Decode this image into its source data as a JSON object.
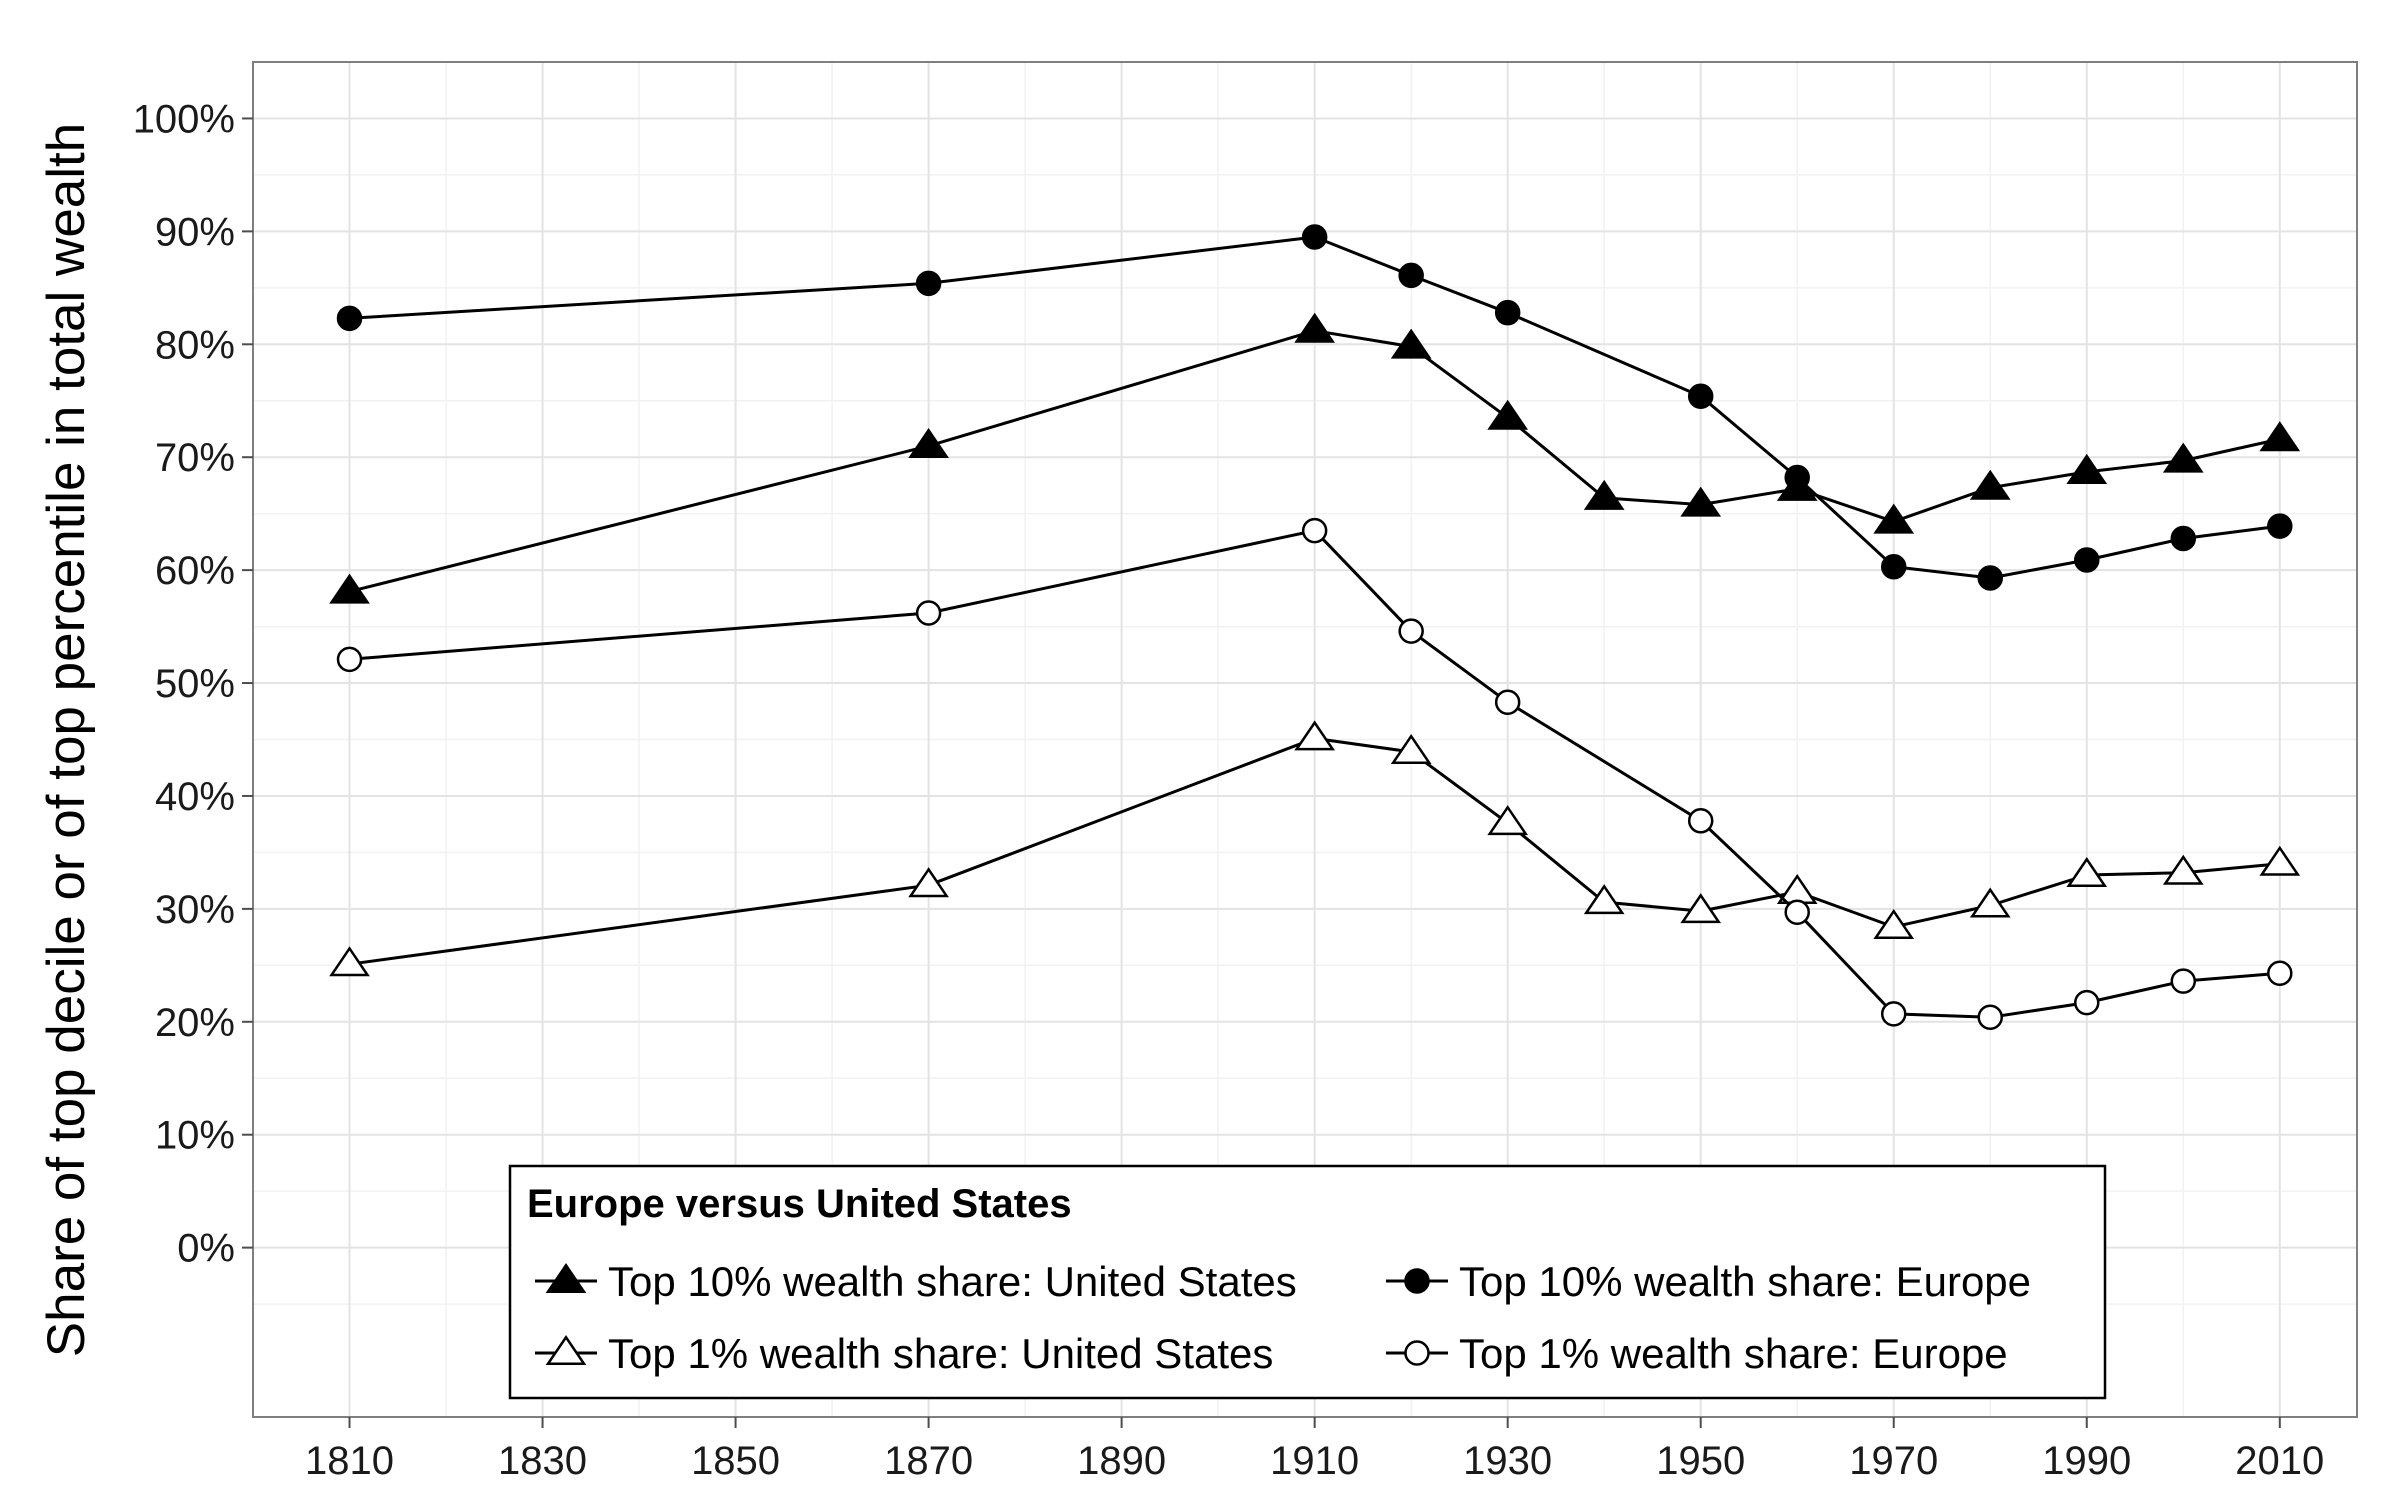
{
  "chart_data": {
    "type": "line",
    "title": "",
    "xlabel": "",
    "ylabel": "Share of top decile or of top percentile in total wealth",
    "xlim": [
      1800,
      2018
    ],
    "ylim": [
      -15,
      105
    ],
    "x_ticks": [
      1810,
      1830,
      1850,
      1870,
      1890,
      1910,
      1930,
      1950,
      1970,
      1990,
      2010
    ],
    "y_ticks": [
      0,
      10,
      20,
      30,
      40,
      50,
      60,
      70,
      80,
      90,
      100
    ],
    "y_tick_labels": [
      "0%",
      "10%",
      "20%",
      "30%",
      "40%",
      "50%",
      "60%",
      "70%",
      "80%",
      "90%",
      "100%"
    ],
    "grid": true,
    "legend": {
      "title": "Europe versus United States",
      "position": "bottom-center",
      "columns": 2
    },
    "series": [
      {
        "name": "Top 10% wealth share: United States",
        "marker": "triangle-filled",
        "x": [
          1810,
          1870,
          1910,
          1920,
          1930,
          1940,
          1950,
          1960,
          1970,
          1980,
          1990,
          2000,
          2010
        ],
        "values": [
          58.1,
          71.0,
          81.2,
          79.8,
          73.5,
          66.4,
          65.8,
          67.2,
          64.3,
          67.3,
          68.7,
          69.7,
          71.6
        ]
      },
      {
        "name": "Top 10% wealth share: Europe",
        "marker": "circle-filled",
        "x": [
          1810,
          1870,
          1910,
          1920,
          1930,
          1950,
          1960,
          1970,
          1980,
          1990,
          2000,
          2010
        ],
        "values": [
          82.3,
          85.4,
          89.5,
          86.1,
          82.8,
          75.4,
          68.2,
          60.3,
          59.3,
          60.9,
          62.8,
          63.9
        ]
      },
      {
        "name": "Top 1% wealth share: United States",
        "marker": "triangle-open",
        "x": [
          1810,
          1870,
          1910,
          1920,
          1930,
          1940,
          1950,
          1960,
          1970,
          1980,
          1990,
          2000,
          2010
        ],
        "values": [
          25.1,
          32.1,
          45.1,
          43.9,
          37.6,
          30.6,
          29.8,
          31.5,
          28.4,
          30.3,
          33.0,
          33.2,
          34.0
        ]
      },
      {
        "name": "Top 1% wealth share: Europe",
        "marker": "circle-open",
        "x": [
          1810,
          1870,
          1910,
          1920,
          1930,
          1950,
          1960,
          1970,
          1980,
          1990,
          2000,
          2010
        ],
        "values": [
          52.1,
          56.2,
          63.5,
          54.6,
          48.3,
          37.8,
          29.7,
          20.7,
          20.4,
          21.7,
          23.6,
          24.3
        ]
      }
    ]
  }
}
